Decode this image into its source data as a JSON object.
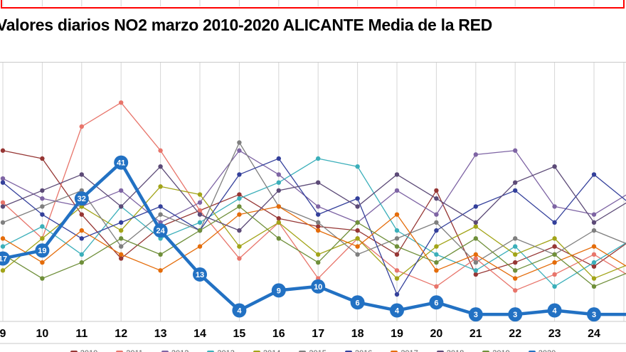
{
  "colors": {
    "background": "#FFFFFF",
    "gridline": "#D6D6D6",
    "axis_line": "#C9C9C9",
    "title_border": "#FF0000",
    "axis_text": "#000000",
    "emphasis_label": "#FFFFFF"
  },
  "chart_data": {
    "type": "line",
    "title": "Valores diarios NO2 marzo 2010-2020 ALICANTE Media de la RED",
    "xlabel": "",
    "ylabel": "",
    "ylim": [
      0,
      70
    ],
    "grid": {
      "vertical": true,
      "horizontal": false
    },
    "note": "left, top, right and bottom edges of the original chart are cropped; legend row cut off at bottom",
    "x": [
      9,
      10,
      11,
      12,
      13,
      14,
      15,
      16,
      17,
      18,
      19,
      20,
      21,
      22,
      23,
      24,
      25
    ],
    "x_tick_labels": [
      "9",
      "10",
      "11",
      "12",
      "13",
      "14",
      "15",
      "16",
      "17",
      "18",
      "19",
      "20",
      "21",
      "22",
      "23",
      "24"
    ],
    "series": [
      {
        "name": "2010",
        "color": "#963634",
        "values": [
          44,
          42,
          28,
          17,
          25,
          29,
          33,
          27,
          25,
          24,
          18,
          34,
          13,
          16,
          20,
          15,
          22
        ]
      },
      {
        "name": "2011",
        "color": "#E8756B",
        "values": [
          31,
          22,
          50,
          56,
          44,
          29,
          17,
          26,
          12,
          22,
          14,
          10,
          17,
          9,
          13,
          18,
          12
        ]
      },
      {
        "name": "2012",
        "color": "#7E64A4",
        "values": [
          37,
          32,
          30,
          34,
          26,
          31,
          44,
          38,
          30,
          26,
          34,
          28,
          43,
          44,
          30,
          28,
          34
        ]
      },
      {
        "name": "2013",
        "color": "#3BAFBA",
        "values": [
          20,
          25,
          18,
          30,
          22,
          26,
          32,
          36,
          42,
          40,
          24,
          18,
          14,
          20,
          10,
          16,
          22
        ]
      },
      {
        "name": "2014",
        "color": "#A2A418",
        "values": [
          14,
          22,
          30,
          24,
          35,
          33,
          20,
          26,
          18,
          22,
          12,
          20,
          25,
          18,
          22,
          12,
          16
        ]
      },
      {
        "name": "2015",
        "color": "#7F7F7F",
        "values": [
          26,
          30,
          34,
          20,
          28,
          24,
          46,
          30,
          26,
          18,
          22,
          26,
          16,
          22,
          18,
          24,
          20
        ]
      },
      {
        "name": "2016",
        "color": "#34409B",
        "values": [
          36,
          28,
          22,
          26,
          30,
          24,
          38,
          42,
          28,
          32,
          8,
          24,
          30,
          34,
          26,
          38,
          30
        ]
      },
      {
        "name": "2017",
        "color": "#E46C0A",
        "values": [
          22,
          16,
          24,
          18,
          14,
          20,
          28,
          30,
          24,
          20,
          28,
          14,
          18,
          12,
          16,
          20,
          14
        ]
      },
      {
        "name": "2018",
        "color": "#5C4A77",
        "values": [
          30,
          34,
          38,
          30,
          40,
          28,
          24,
          34,
          36,
          30,
          38,
          32,
          26,
          36,
          40,
          26,
          32
        ]
      },
      {
        "name": "2019",
        "color": "#6F8F3A",
        "values": [
          18,
          12,
          16,
          22,
          18,
          24,
          30,
          22,
          16,
          26,
          20,
          16,
          22,
          14,
          18,
          10,
          14
        ]
      },
      {
        "name": "2020",
        "color": "#2271C3",
        "emphasis": true,
        "data_labels": true,
        "values": [
          17,
          19,
          32,
          41,
          24,
          13,
          4,
          9,
          10,
          6,
          4,
          6,
          3,
          3,
          4,
          3,
          3
        ]
      }
    ]
  },
  "legend": {
    "cropped": true,
    "items": [
      {
        "label": "2010",
        "color": "#963634"
      },
      {
        "label": "2011",
        "color": "#E8756B"
      },
      {
        "label": "2012",
        "color": "#7E64A4"
      },
      {
        "label": "2013",
        "color": "#3BAFBA"
      },
      {
        "label": "2014",
        "color": "#A2A418"
      },
      {
        "label": "2015",
        "color": "#7F7F7F"
      },
      {
        "label": "2016",
        "color": "#34409B"
      },
      {
        "label": "2017",
        "color": "#E46C0A"
      },
      {
        "label": "2018",
        "color": "#5C4A77"
      },
      {
        "label": "2019",
        "color": "#6F8F3A"
      },
      {
        "label": "2020",
        "color": "#2271C3"
      }
    ]
  }
}
